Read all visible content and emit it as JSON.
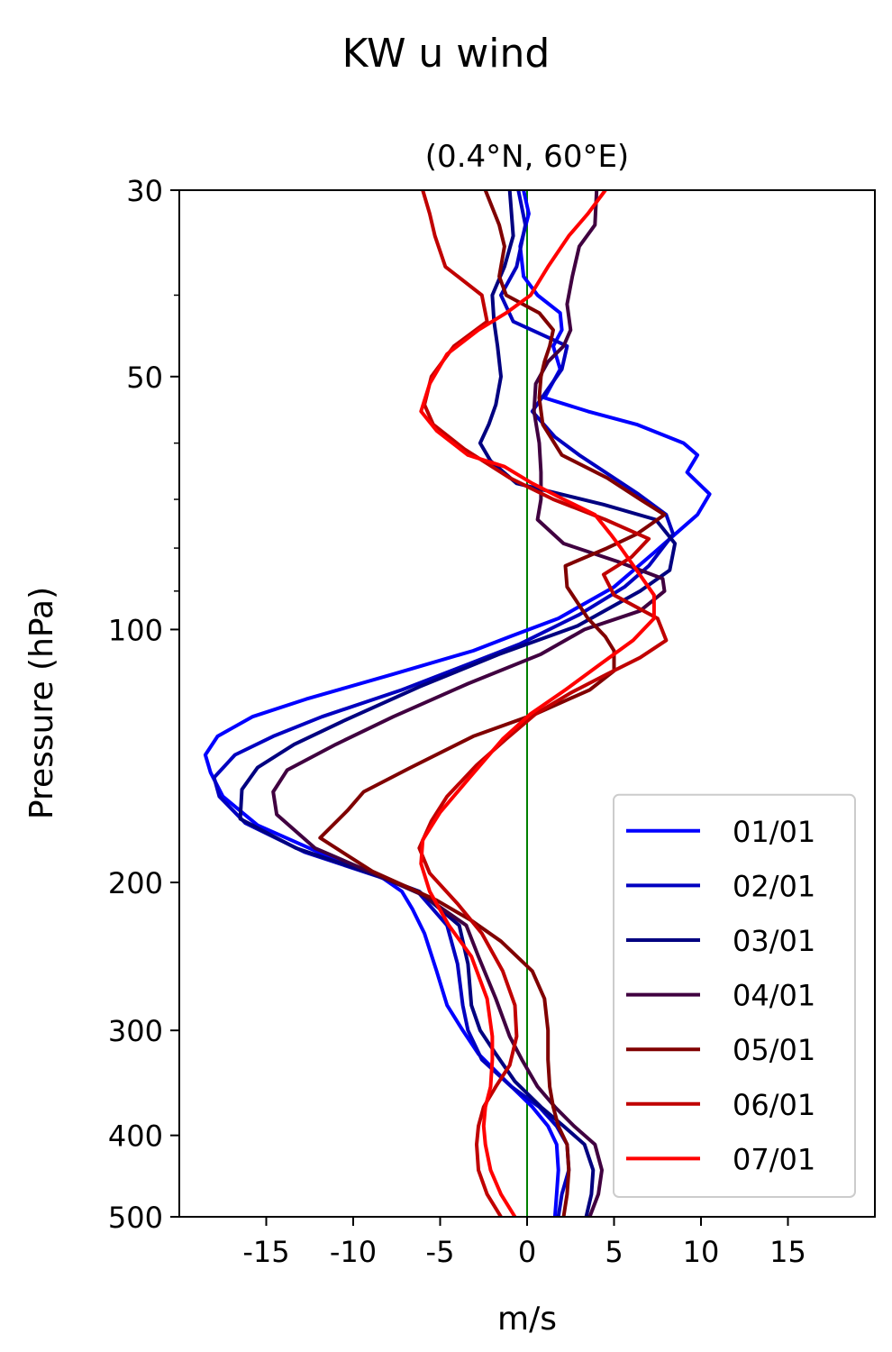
{
  "chart_data": {
    "type": "line",
    "suptitle": "KW u wind",
    "title": "(0.4°N, 60°E)",
    "xlabel": "m/s",
    "ylabel": "Pressure (hPa)",
    "xlim": [
      -20,
      20
    ],
    "ylim": [
      500,
      30
    ],
    "y_scale": "log",
    "x_ticks": [
      -15,
      -10,
      -5,
      0,
      5,
      10,
      15
    ],
    "x_tick_labels": [
      "-15",
      "-10",
      "-5",
      "0",
      "5",
      "10",
      "15"
    ],
    "y_ticks": [
      30,
      50,
      100,
      200,
      300,
      400,
      500
    ],
    "y_tick_labels": [
      "30",
      "50",
      "100",
      "200",
      "300",
      "400",
      "500"
    ],
    "y_minor_ticks": [
      40,
      60,
      70,
      80,
      90
    ],
    "zero_line": {
      "x": 0,
      "color": "#008000"
    },
    "legend_position": "lower-right",
    "grid": false,
    "series": [
      {
        "name": "01/01",
        "color": "#0000ff",
        "points": [
          [
            1.6,
            500
          ],
          [
            1.7,
            470
          ],
          [
            1.8,
            440
          ],
          [
            1.7,
            410
          ],
          [
            1.2,
            390
          ],
          [
            0.3,
            370
          ],
          [
            -1.2,
            345
          ],
          [
            -2.8,
            320
          ],
          [
            -3.7,
            300
          ],
          [
            -4.6,
            280
          ],
          [
            -5.2,
            255
          ],
          [
            -5.9,
            230
          ],
          [
            -6.6,
            215
          ],
          [
            -7.2,
            205
          ],
          [
            -8.4,
            197
          ],
          [
            -11.5,
            186
          ],
          [
            -15.5,
            171
          ],
          [
            -17.5,
            158
          ],
          [
            -18.2,
            148
          ],
          [
            -18.5,
            141
          ],
          [
            -17.8,
            134
          ],
          [
            -15.8,
            127
          ],
          [
            -12.7,
            121
          ],
          [
            -7.7,
            113
          ],
          [
            -3.1,
            106
          ],
          [
            -1.0,
            102
          ],
          [
            1.8,
            97
          ],
          [
            5.0,
            89
          ],
          [
            7.3,
            81
          ],
          [
            9.8,
            73
          ],
          [
            10.5,
            69
          ],
          [
            9.2,
            65
          ],
          [
            9.8,
            62
          ],
          [
            9.0,
            60
          ],
          [
            6.3,
            57
          ],
          [
            3.5,
            55
          ],
          [
            1.0,
            53
          ],
          [
            1.9,
            49
          ],
          [
            1.5,
            46
          ],
          [
            2.0,
            44
          ],
          [
            1.9,
            42
          ],
          [
            0.6,
            40
          ],
          [
            -0.2,
            38
          ],
          [
            -0.4,
            35
          ],
          [
            0.1,
            32
          ],
          [
            -0.2,
            30
          ]
        ]
      },
      {
        "name": "02/01",
        "color": "#0000c0",
        "points": [
          [
            1.8,
            500
          ],
          [
            2.0,
            470
          ],
          [
            2.4,
            440
          ],
          [
            2.3,
            410
          ],
          [
            1.7,
            390
          ],
          [
            0.7,
            370
          ],
          [
            -0.9,
            350
          ],
          [
            -2.6,
            325
          ],
          [
            -3.4,
            300
          ],
          [
            -3.7,
            280
          ],
          [
            -4.0,
            250
          ],
          [
            -4.6,
            225
          ],
          [
            -6.3,
            205
          ],
          [
            -8.5,
            197
          ],
          [
            -12.8,
            184
          ],
          [
            -16.2,
            170
          ],
          [
            -17.7,
            158
          ],
          [
            -18.0,
            150
          ],
          [
            -16.8,
            141
          ],
          [
            -14.6,
            134
          ],
          [
            -11.8,
            127
          ],
          [
            -7.2,
            118
          ],
          [
            -3.4,
            110
          ],
          [
            -0.4,
            104
          ],
          [
            3.0,
            96
          ],
          [
            5.6,
            89
          ],
          [
            7.0,
            84
          ],
          [
            8.4,
            77
          ],
          [
            8.0,
            73
          ],
          [
            6.4,
            69
          ],
          [
            3.0,
            62
          ],
          [
            1.6,
            59
          ],
          [
            0.3,
            55
          ],
          [
            2.0,
            49
          ],
          [
            2.3,
            46
          ],
          [
            -0.8,
            43
          ],
          [
            -1.5,
            40
          ],
          [
            -0.6,
            37
          ],
          [
            -0.1,
            33
          ],
          [
            -0.5,
            30
          ]
        ]
      },
      {
        "name": "03/01",
        "color": "#000080",
        "points": [
          [
            3.4,
            500
          ],
          [
            3.7,
            470
          ],
          [
            3.8,
            440
          ],
          [
            3.3,
            410
          ],
          [
            2.1,
            390
          ],
          [
            0.8,
            370
          ],
          [
            -0.7,
            345
          ],
          [
            -1.8,
            320
          ],
          [
            -2.7,
            300
          ],
          [
            -3.2,
            280
          ],
          [
            -3.4,
            250
          ],
          [
            -3.9,
            225
          ],
          [
            -6.2,
            205
          ],
          [
            -9.0,
            195
          ],
          [
            -13.3,
            182
          ],
          [
            -16.5,
            168
          ],
          [
            -16.4,
            155
          ],
          [
            -15.5,
            146
          ],
          [
            -13.4,
            137
          ],
          [
            -10.4,
            128
          ],
          [
            -6.2,
            117
          ],
          [
            -1.6,
            107
          ],
          [
            2.9,
            99
          ],
          [
            6.5,
            90
          ],
          [
            8.2,
            85
          ],
          [
            8.5,
            79
          ],
          [
            7.4,
            74
          ],
          [
            4.4,
            71
          ],
          [
            -0.6,
            67
          ],
          [
            -2.1,
            63
          ],
          [
            -2.7,
            60
          ],
          [
            -2.2,
            57
          ],
          [
            -1.8,
            54
          ],
          [
            -1.5,
            50
          ],
          [
            -1.7,
            46
          ],
          [
            -1.9,
            43
          ],
          [
            -2.0,
            40
          ],
          [
            -1.3,
            37
          ],
          [
            -0.8,
            34
          ],
          [
            -1.0,
            30
          ]
        ]
      },
      {
        "name": "04/01",
        "color": "#400040",
        "points": [
          [
            3.6,
            500
          ],
          [
            4.1,
            470
          ],
          [
            4.3,
            440
          ],
          [
            3.9,
            410
          ],
          [
            2.7,
            390
          ],
          [
            1.6,
            370
          ],
          [
            0.6,
            350
          ],
          [
            -0.3,
            325
          ],
          [
            -1.0,
            305
          ],
          [
            -1.8,
            275
          ],
          [
            -2.8,
            245
          ],
          [
            -3.5,
            225
          ],
          [
            -6.0,
            207
          ],
          [
            -8.6,
            196
          ],
          [
            -12.2,
            182
          ],
          [
            -14.4,
            166
          ],
          [
            -14.6,
            156
          ],
          [
            -13.8,
            147
          ],
          [
            -11.0,
            137
          ],
          [
            -7.7,
            127
          ],
          [
            -3.4,
            116
          ],
          [
            0.8,
            107
          ],
          [
            3.3,
            100
          ],
          [
            6.5,
            95
          ],
          [
            7.9,
            90
          ],
          [
            7.8,
            87
          ],
          [
            5.2,
            83
          ],
          [
            2.1,
            79
          ],
          [
            0.6,
            74
          ],
          [
            0.8,
            70
          ],
          [
            0.8,
            65
          ],
          [
            0.7,
            60
          ],
          [
            0.4,
            55
          ],
          [
            0.5,
            51
          ],
          [
            1.2,
            48
          ],
          [
            2.1,
            46
          ],
          [
            2.5,
            44
          ],
          [
            2.3,
            41
          ],
          [
            2.6,
            38
          ],
          [
            3.0,
            35
          ],
          [
            3.9,
            33
          ],
          [
            4.0,
            30
          ]
        ]
      },
      {
        "name": "05/01",
        "color": "#800000",
        "points": [
          [
            2.1,
            500
          ],
          [
            2.3,
            470
          ],
          [
            2.4,
            440
          ],
          [
            2.3,
            410
          ],
          [
            1.8,
            390
          ],
          [
            1.5,
            370
          ],
          [
            1.3,
            350
          ],
          [
            1.2,
            325
          ],
          [
            1.2,
            300
          ],
          [
            1.0,
            275
          ],
          [
            0.3,
            255
          ],
          [
            -1.5,
            235
          ],
          [
            -3.2,
            222
          ],
          [
            -5.2,
            210
          ],
          [
            -8.9,
            194
          ],
          [
            -11.9,
            177
          ],
          [
            -10.3,
            164
          ],
          [
            -9.4,
            156
          ],
          [
            -6.7,
            146
          ],
          [
            -3.1,
            134
          ],
          [
            0.5,
            126
          ],
          [
            3.6,
            118
          ],
          [
            5.0,
            112
          ],
          [
            5.0,
            106
          ],
          [
            4.5,
            102
          ],
          [
            3.5,
            97
          ],
          [
            2.3,
            89
          ],
          [
            2.2,
            84
          ],
          [
            4.6,
            80
          ],
          [
            6.3,
            77
          ],
          [
            7.9,
            73
          ],
          [
            6.5,
            70
          ],
          [
            4.6,
            66
          ],
          [
            2.0,
            62
          ],
          [
            0.9,
            57
          ],
          [
            0.7,
            53
          ],
          [
            0.8,
            50
          ],
          [
            1.0,
            48
          ],
          [
            1.3,
            46
          ],
          [
            1.5,
            44
          ],
          [
            0.7,
            42
          ],
          [
            -1.2,
            40
          ],
          [
            -1.6,
            38
          ],
          [
            -1.3,
            35
          ],
          [
            -1.6,
            33
          ],
          [
            -2.4,
            30
          ]
        ]
      },
      {
        "name": "06/01",
        "color": "#c00000",
        "points": [
          [
            -1.5,
            500
          ],
          [
            -2.3,
            470
          ],
          [
            -2.8,
            440
          ],
          [
            -2.9,
            410
          ],
          [
            -2.8,
            390
          ],
          [
            -2.5,
            370
          ],
          [
            -1.8,
            350
          ],
          [
            -1.0,
            330
          ],
          [
            -0.6,
            305
          ],
          [
            -0.7,
            280
          ],
          [
            -1.4,
            255
          ],
          [
            -2.6,
            230
          ],
          [
            -4.0,
            212
          ],
          [
            -5.6,
            195
          ],
          [
            -6.2,
            182
          ],
          [
            -5.5,
            169
          ],
          [
            -4.6,
            158
          ],
          [
            -2.9,
            145
          ],
          [
            -1.2,
            135
          ],
          [
            0.5,
            126
          ],
          [
            2.5,
            119
          ],
          [
            4.6,
            113
          ],
          [
            6.5,
            108
          ],
          [
            8.0,
            103
          ],
          [
            7.5,
            97
          ],
          [
            5.0,
            91
          ],
          [
            4.4,
            86
          ],
          [
            6.0,
            82
          ],
          [
            7.0,
            78
          ],
          [
            4.5,
            74
          ],
          [
            1.5,
            70
          ],
          [
            -1.0,
            66
          ],
          [
            -3.6,
            61
          ],
          [
            -5.4,
            57
          ],
          [
            -5.9,
            54
          ],
          [
            -5.5,
            50
          ],
          [
            -4.2,
            46
          ],
          [
            -2.3,
            43
          ],
          [
            -2.6,
            40
          ],
          [
            -4.7,
            37
          ],
          [
            -5.3,
            34
          ],
          [
            -5.6,
            32
          ],
          [
            -6.0,
            30
          ]
        ]
      },
      {
        "name": "07/01",
        "color": "#ff0000",
        "points": [
          [
            -0.7,
            500
          ],
          [
            -1.5,
            470
          ],
          [
            -2.1,
            440
          ],
          [
            -2.4,
            410
          ],
          [
            -2.5,
            390
          ],
          [
            -2.4,
            370
          ],
          [
            -2.1,
            350
          ],
          [
            -2.0,
            325
          ],
          [
            -2.0,
            305
          ],
          [
            -2.3,
            275
          ],
          [
            -3.2,
            245
          ],
          [
            -4.5,
            225
          ],
          [
            -5.6,
            205
          ],
          [
            -6.1,
            190
          ],
          [
            -6.0,
            178
          ],
          [
            -5.0,
            165
          ],
          [
            -3.3,
            150
          ],
          [
            -1.4,
            135
          ],
          [
            0.2,
            126
          ],
          [
            2.2,
            118
          ],
          [
            4.2,
            110
          ],
          [
            6.1,
            103
          ],
          [
            7.3,
            97
          ],
          [
            7.3,
            91
          ],
          [
            6.3,
            85
          ],
          [
            5.4,
            80
          ],
          [
            4.8,
            77
          ],
          [
            3.9,
            73
          ],
          [
            2.1,
            70
          ],
          [
            0.3,
            67
          ],
          [
            -1.3,
            64
          ],
          [
            -3.4,
            62
          ],
          [
            -5.2,
            58
          ],
          [
            -6.1,
            55
          ],
          [
            -5.6,
            51
          ],
          [
            -4.6,
            47
          ],
          [
            -2.8,
            44
          ],
          [
            -1.2,
            42
          ],
          [
            0.2,
            40
          ],
          [
            1.2,
            37
          ],
          [
            2.4,
            34
          ],
          [
            3.5,
            32
          ],
          [
            4.5,
            30
          ]
        ]
      }
    ]
  }
}
